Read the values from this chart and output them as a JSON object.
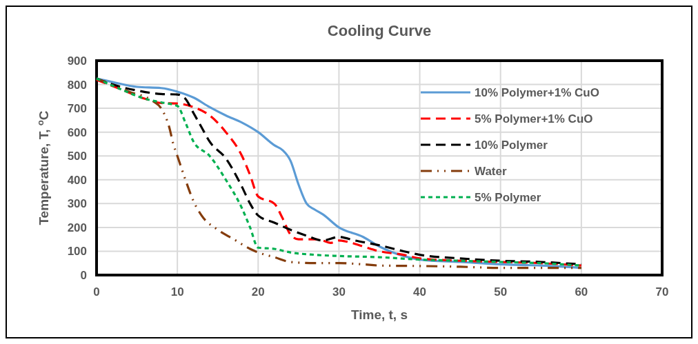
{
  "chart_data": {
    "type": "line",
    "title": "Cooling Curve",
    "xlabel": "Time, t, s",
    "ylabel": "Temperature, T, $^{o}$C",
    "xlim": [
      0,
      70
    ],
    "xticks": [
      0,
      10,
      20,
      30,
      40,
      50,
      60,
      70
    ],
    "ylim": [
      0,
      900
    ],
    "yticks": [
      0,
      100,
      200,
      300,
      400,
      500,
      600,
      700,
      800,
      900
    ],
    "grid": true,
    "legend": "top right",
    "series": [
      {
        "name": "10% Polymer+1% CuO",
        "color": "#5b9bd5",
        "line_style": "solid",
        "x": [
          0,
          2,
          5,
          8,
          10,
          12,
          14,
          16,
          18,
          20,
          22,
          23,
          24,
          25,
          26,
          27,
          28,
          30,
          33,
          35,
          38,
          40,
          45,
          50,
          55,
          60
        ],
        "values": [
          825,
          810,
          790,
          785,
          770,
          745,
          705,
          670,
          640,
          600,
          545,
          525,
          480,
          380,
          300,
          275,
          255,
          200,
          160,
          120,
          80,
          65,
          55,
          45,
          40,
          30
        ]
      },
      {
        "name": "5% Polymer+1% CuO",
        "color": "#ff0000",
        "line_style": "dashed",
        "x": [
          0,
          3,
          6,
          8,
          10,
          12,
          14,
          16,
          18,
          19,
          20,
          22,
          23,
          24,
          25,
          27,
          28,
          29,
          30,
          31,
          33,
          35,
          38,
          40,
          45,
          50,
          55,
          60
        ],
        "values": [
          820,
          780,
          740,
          722,
          720,
          705,
          670,
          600,
          500,
          420,
          330,
          300,
          240,
          170,
          150,
          150,
          145,
          135,
          145,
          140,
          120,
          100,
          85,
          70,
          60,
          55,
          50,
          40
        ]
      },
      {
        "name": "10% Polymer",
        "color": "#000000",
        "line_style": "dashed",
        "x": [
          0,
          3,
          5,
          8,
          10,
          11,
          12,
          13,
          14,
          16,
          18,
          19,
          20,
          22,
          24,
          26,
          28,
          30,
          32,
          35,
          38,
          40,
          45,
          50,
          55,
          60
        ],
        "values": [
          825,
          790,
          775,
          760,
          758,
          740,
          680,
          620,
          560,
          490,
          370,
          300,
          250,
          220,
          190,
          165,
          145,
          160,
          145,
          125,
          100,
          85,
          70,
          60,
          55,
          45
        ]
      },
      {
        "name": "Water",
        "color": "#843c0c",
        "line_style": "dashdot",
        "x": [
          0,
          4,
          7,
          8,
          9,
          9.5,
          10,
          11,
          12,
          13,
          15,
          17,
          19,
          20,
          22,
          24,
          27,
          30,
          33,
          35,
          40,
          45,
          50,
          55,
          60
        ],
        "values": [
          825,
          770,
          730,
          700,
          620,
          550,
          500,
          400,
          310,
          250,
          190,
          150,
          110,
          95,
          75,
          55,
          50,
          50,
          45,
          40,
          38,
          35,
          30,
          30,
          30
        ]
      },
      {
        "name": "5% Polymer",
        "color": "#00b050",
        "line_style": "dotted",
        "x": [
          0,
          3,
          6,
          8,
          10,
          11,
          12,
          14,
          16,
          18,
          19,
          20,
          22,
          24,
          27,
          30,
          35,
          40,
          45,
          50,
          55,
          60
        ],
        "values": [
          825,
          780,
          740,
          725,
          710,
          640,
          560,
          500,
          400,
          280,
          200,
          115,
          110,
          95,
          85,
          80,
          75,
          65,
          60,
          55,
          50,
          40
        ]
      }
    ]
  }
}
